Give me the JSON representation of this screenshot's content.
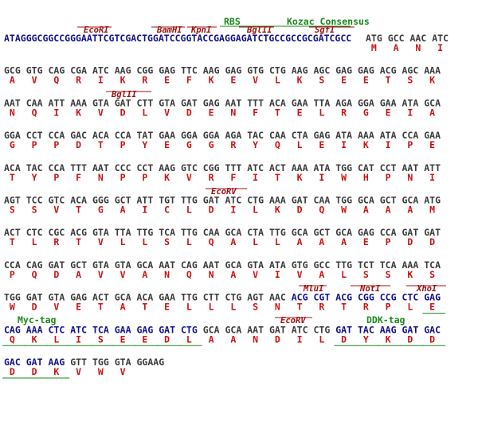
{
  "annotations": [
    {
      "label": "RBS"
    },
    {
      "label": "Kozac Consensus"
    },
    {
      "label": "EcoRI"
    },
    {
      "label": "BamHI"
    },
    {
      "label": "KpnI"
    },
    {
      "label": "BglII"
    },
    {
      "label": "SgfI"
    },
    {
      "label": "BglII"
    },
    {
      "label": "EcoRV"
    },
    {
      "label": "MluI"
    },
    {
      "label": "NotI"
    },
    {
      "label": "XhoI"
    },
    {
      "label": "Myc-tag"
    },
    {
      "label": "EcoRV"
    },
    {
      "label": "DDK-tag"
    }
  ],
  "rows": [
    {
      "prefix": "ATAGGGCGGCCGGGAATTCGTCGACTGGATCCGGTACCGAGGAGATCTGCCGCCGCGATCGCC",
      "codons": [
        "ATG",
        "GCC",
        "AAC",
        "ATC"
      ],
      "aa": [
        "M",
        "A",
        "N",
        "I"
      ],
      "blue_codons": []
    },
    {
      "codons": [
        "GCG",
        "GTG",
        "CAG",
        "CGA",
        "ATC",
        "AAG",
        "CGG",
        "GAG",
        "TTC",
        "AAG",
        "GAG",
        "GTG",
        "CTG",
        "AAG",
        "AGC",
        "GAG",
        "GAG",
        "ACG",
        "AGC",
        "AAA"
      ],
      "aa": [
        "A",
        "V",
        "Q",
        "R",
        "I",
        "K",
        "R",
        "E",
        "F",
        "K",
        "E",
        "V",
        "L",
        "K",
        "S",
        "E",
        "E",
        "T",
        "S",
        "K"
      ],
      "blue_codons": []
    },
    {
      "codons": [
        "AAT",
        "CAA",
        "ATT",
        "AAA",
        "GTA",
        "GAT",
        "CTT",
        "GTA",
        "GAT",
        "GAG",
        "AAT",
        "TTT",
        "ACA",
        "GAA",
        "TTA",
        "AGA",
        "GGA",
        "GAA",
        "ATA",
        "GCA"
      ],
      "aa": [
        "N",
        "Q",
        "I",
        "K",
        "V",
        "D",
        "L",
        "V",
        "D",
        "E",
        "N",
        "F",
        "T",
        "E",
        "L",
        "R",
        "G",
        "E",
        "I",
        "A"
      ],
      "blue_codons": []
    },
    {
      "codons": [
        "GGA",
        "CCT",
        "CCA",
        "GAC",
        "ACA",
        "CCA",
        "TAT",
        "GAA",
        "GGA",
        "GGA",
        "AGA",
        "TAC",
        "CAA",
        "CTA",
        "GAG",
        "ATA",
        "AAA",
        "ATA",
        "CCA",
        "GAA"
      ],
      "aa": [
        "G",
        "P",
        "P",
        "D",
        "T",
        "P",
        "Y",
        "E",
        "G",
        "G",
        "R",
        "Y",
        "Q",
        "L",
        "E",
        "I",
        "K",
        "I",
        "P",
        "E"
      ],
      "blue_codons": []
    },
    {
      "codons": [
        "ACA",
        "TAC",
        "CCA",
        "TTT",
        "AAT",
        "CCC",
        "CCT",
        "AAG",
        "GTC",
        "CGG",
        "TTT",
        "ATC",
        "ACT",
        "AAA",
        "ATA",
        "TGG",
        "CAT",
        "CCT",
        "AAT",
        "ATT"
      ],
      "aa": [
        "T",
        "Y",
        "P",
        "F",
        "N",
        "P",
        "P",
        "K",
        "V",
        "R",
        "F",
        "I",
        "T",
        "K",
        "I",
        "W",
        "H",
        "P",
        "N",
        "I"
      ],
      "blue_codons": []
    },
    {
      "codons": [
        "AGT",
        "TCC",
        "GTC",
        "ACA",
        "GGG",
        "GCT",
        "ATT",
        "TGT",
        "TTG",
        "GAT",
        "ATC",
        "CTG",
        "AAA",
        "GAT",
        "CAA",
        "TGG",
        "GCA",
        "GCT",
        "GCA",
        "ATG"
      ],
      "aa": [
        "S",
        "S",
        "V",
        "T",
        "G",
        "A",
        "I",
        "C",
        "L",
        "D",
        "I",
        "L",
        "K",
        "D",
        "Q",
        "W",
        "A",
        "A",
        "A",
        "M"
      ],
      "blue_codons": []
    },
    {
      "codons": [
        "ACT",
        "CTC",
        "CGC",
        "ACG",
        "GTA",
        "TTA",
        "TTG",
        "TCA",
        "TTG",
        "CAA",
        "GCA",
        "CTA",
        "TTG",
        "GCA",
        "GCT",
        "GCA",
        "GAG",
        "CCA",
        "GAT",
        "GAT"
      ],
      "aa": [
        "T",
        "L",
        "R",
        "T",
        "V",
        "L",
        "L",
        "S",
        "L",
        "Q",
        "A",
        "L",
        "L",
        "A",
        "A",
        "A",
        "E",
        "P",
        "D",
        "D"
      ],
      "blue_codons": []
    },
    {
      "codons": [
        "CCA",
        "CAG",
        "GAT",
        "GCT",
        "GTA",
        "GTA",
        "GCA",
        "AAT",
        "CAG",
        "AAT",
        "GCA",
        "GTA",
        "ATA",
        "GTG",
        "GCC",
        "TTG",
        "TCT",
        "TCA",
        "AAA",
        "TCA"
      ],
      "aa": [
        "P",
        "Q",
        "D",
        "A",
        "V",
        "V",
        "A",
        "N",
        "Q",
        "N",
        "A",
        "V",
        "I",
        "V",
        "A",
        "L",
        "S",
        "S",
        "K",
        "S"
      ],
      "blue_codons": []
    },
    {
      "codons": [
        "TGG",
        "GAT",
        "GTA",
        "GAG",
        "ACT",
        "GCA",
        "ACA",
        "GAA",
        "TTG",
        "CTT",
        "CTG",
        "AGT",
        "AAC",
        "ACG",
        "CGT",
        "ACG",
        "CGG",
        "CCG",
        "CTC",
        "GAG"
      ],
      "aa": [
        "W",
        "D",
        "V",
        "E",
        "T",
        "A",
        "T",
        "E",
        "L",
        "L",
        "L",
        "S",
        "N",
        "T",
        "R",
        "T",
        "R",
        "P",
        "L",
        "E"
      ],
      "blue_codons": [
        13,
        14,
        15,
        16,
        17,
        18,
        19
      ],
      "underlined": [
        19
      ]
    },
    {
      "codons": [
        "CAG",
        "AAA",
        "CTC",
        "ATC",
        "TCA",
        "GAA",
        "GAG",
        "GAT",
        "CTG",
        "GCA",
        "GCA",
        "AAT",
        "GAT",
        "ATC",
        "CTG",
        "GAT",
        "TAC",
        "AAG",
        "GAT",
        "GAC"
      ],
      "aa": [
        "Q",
        "K",
        "L",
        "I",
        "S",
        "E",
        "E",
        "D",
        "L",
        "A",
        "A",
        "N",
        "D",
        "I",
        "L",
        "D",
        "Y",
        "K",
        "D",
        "D"
      ],
      "blue_codons": [
        0,
        1,
        2,
        3,
        4,
        5,
        6,
        7,
        8,
        15,
        16,
        17,
        18,
        19
      ],
      "underlined": [
        0,
        1,
        2,
        3,
        4,
        5,
        6,
        7,
        8,
        15,
        16,
        17,
        18,
        19
      ]
    },
    {
      "codons": [
        "GAC",
        "GAT",
        "AAG",
        "GTT",
        "TGG",
        "GTA",
        "GGAAG"
      ],
      "aa": [
        "D",
        "D",
        "K",
        "V",
        "W",
        "V"
      ],
      "blue_codons": [
        0,
        1,
        2
      ],
      "underlined": [
        0,
        1,
        2
      ]
    }
  ]
}
